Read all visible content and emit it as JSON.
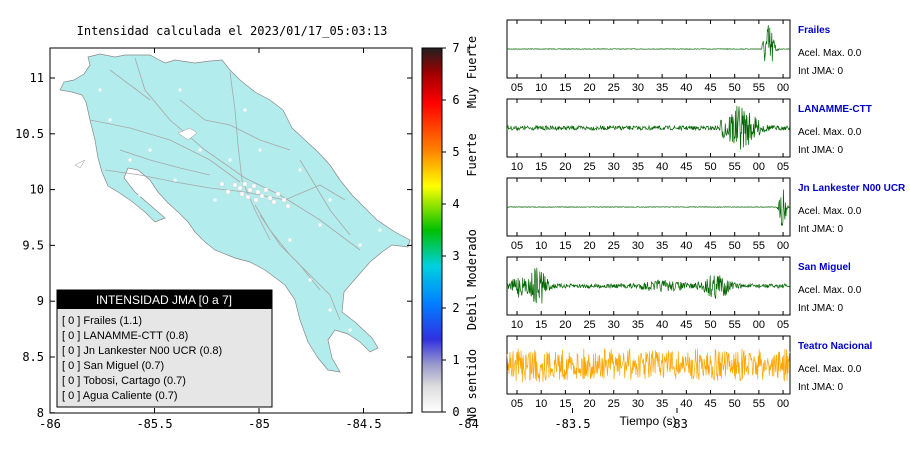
{
  "map": {
    "title": "Intensidad calculada el 2023/01/17_05:03:13",
    "xticks": [
      "-86",
      "-85.5",
      "-85",
      "-84.5",
      "-84",
      "-83.5",
      "-83"
    ],
    "yticks": [
      "11",
      "10.5",
      "10",
      "9.5",
      "9",
      "8.5",
      "8"
    ],
    "land_color": "#b3ecec",
    "legend_title": "INTENSIDAD JMA [0 a 7]",
    "stations": [
      "[ 0 ]  Frailes (1.1)",
      "[ 0 ]  LANAMME-CTT (0.8)",
      "[ 0 ]  Jn Lankester N00 UCR (0.8)",
      "[ 0 ]  San Miguel (0.7)",
      "[ 0 ]  Tobosi, Cartago (0.7)",
      "[ 0 ]  Agua Caliente (0.7)"
    ]
  },
  "colorbar": {
    "ticks": [
      "7",
      "6",
      "5",
      "4",
      "3",
      "2",
      "1",
      "0"
    ],
    "labels": [
      "Muy Fuerte",
      "Fuerte",
      "Moderado",
      "Debil",
      "No sentido"
    ]
  },
  "chart_data": {
    "type": "line",
    "xlabel": "Tiempo (s)",
    "series": [
      {
        "name": "Frailes",
        "accel_label": "Acel. Max. 0.0",
        "int_label": "Int JMA: 0",
        "color": "#006400",
        "ticks": [
          "05",
          "10",
          "15",
          "20",
          "25",
          "30",
          "35",
          "40",
          "45",
          "50",
          "55",
          "00"
        ],
        "tick_start": 5
      },
      {
        "name": "LANAMME-CTT",
        "accel_label": "Acel. Max. 0.0",
        "int_label": "Int JMA: 0",
        "color": "#006400",
        "ticks": [
          "10",
          "15",
          "20",
          "25",
          "30",
          "35",
          "40",
          "45",
          "50",
          "55",
          "00",
          "05"
        ],
        "tick_start": 10
      },
      {
        "name": "Jn Lankester N00 UCR",
        "accel_label": "Acel. Max. 0.0",
        "int_label": "Int JMA: 0",
        "color": "#006400",
        "ticks": [
          "05",
          "10",
          "15",
          "20",
          "25",
          "30",
          "35",
          "40",
          "45",
          "50",
          "55",
          "00"
        ],
        "tick_start": 5
      },
      {
        "name": "San Miguel",
        "accel_label": "Acel. Max. 0.0",
        "int_label": "Int JMA: 0",
        "color": "#006400",
        "ticks": [
          "10",
          "15",
          "20",
          "25",
          "30",
          "35",
          "40",
          "45",
          "50",
          "55",
          "00",
          "05"
        ],
        "tick_start": 10
      },
      {
        "name": "Teatro Nacional",
        "accel_label": "Acel. Max. 0.0",
        "int_label": "Int JMA: 0",
        "color": "#ffa500",
        "ticks": [
          "05",
          "10",
          "15",
          "20",
          "25",
          "30",
          "35",
          "40",
          "45",
          "50",
          "55",
          "00"
        ],
        "tick_start": 5
      }
    ]
  }
}
